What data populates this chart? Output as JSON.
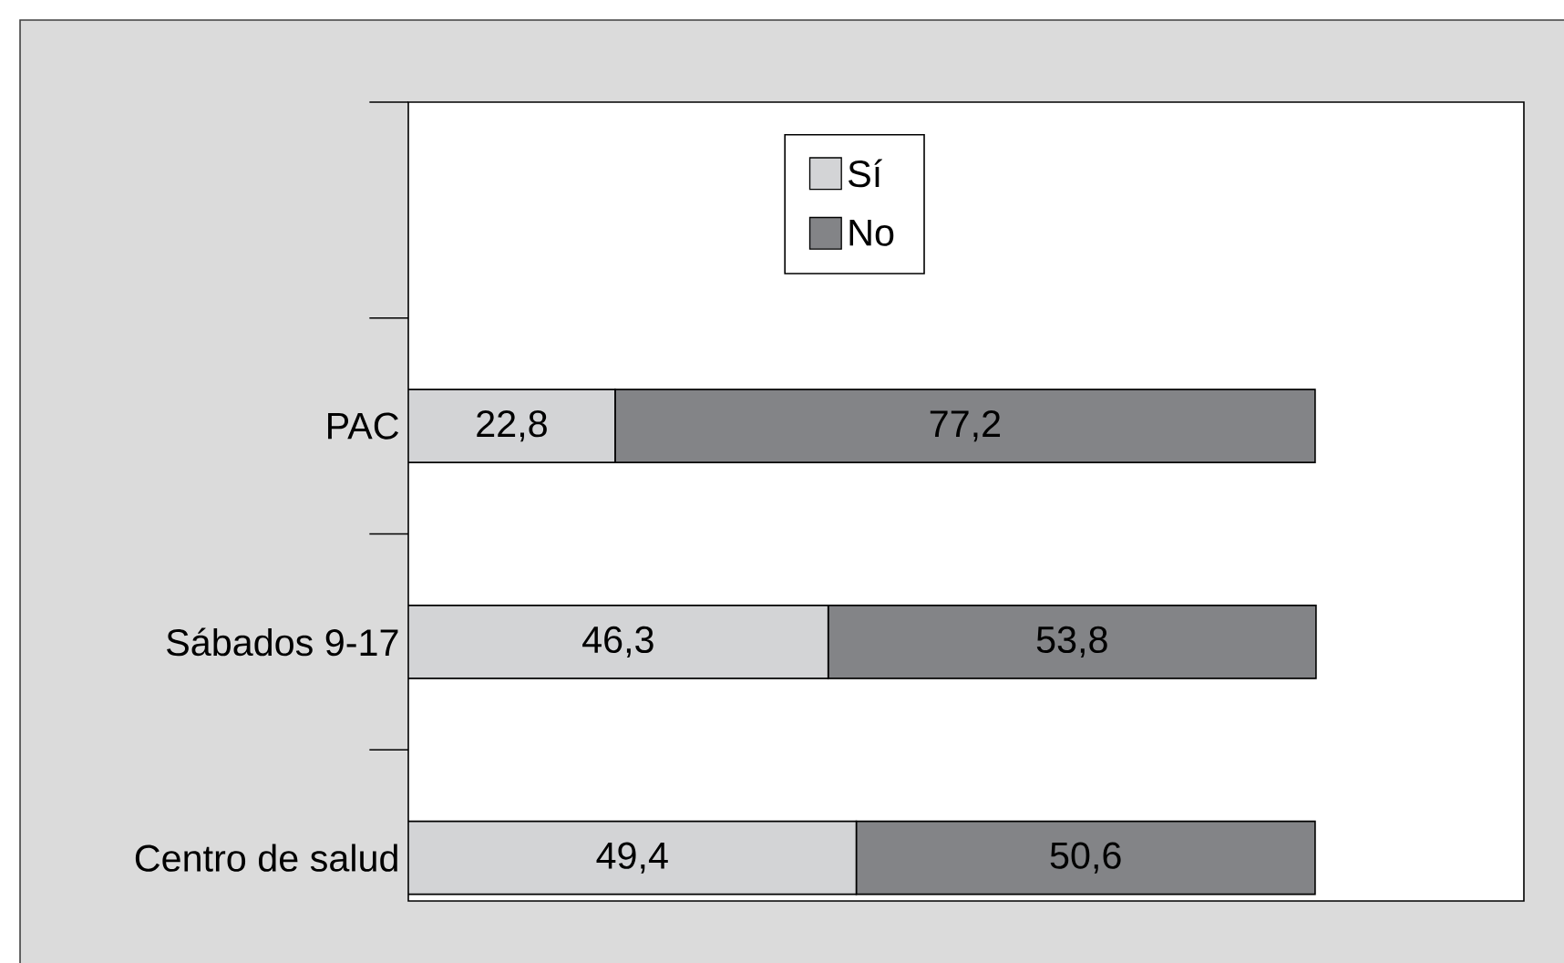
{
  "chart_data": {
    "type": "bar",
    "orientation": "horizontal",
    "stacked": true,
    "categories": [
      "PAC",
      "Sábados 9-17",
      "Centro de salud"
    ],
    "series": [
      {
        "name": "Sí",
        "color": "#d3d4d6",
        "values": [
          22.8,
          46.3,
          49.4
        ],
        "value_labels": [
          "22,8",
          "46,3",
          "49,4"
        ]
      },
      {
        "name": "No",
        "color": "#838487",
        "values": [
          77.2,
          53.8,
          50.6
        ],
        "value_labels": [
          "77,2",
          "53,8",
          "50,6"
        ]
      }
    ],
    "legend": "top",
    "tick_labels": "y"
  }
}
